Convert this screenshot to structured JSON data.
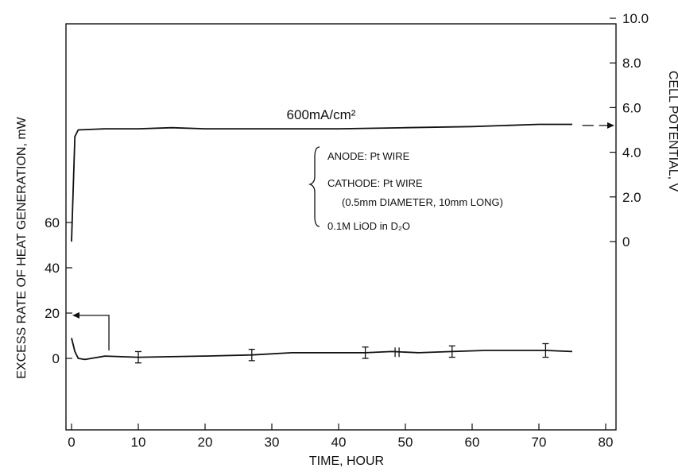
{
  "chart_data": {
    "type": "line",
    "xlabel": "TIME, HOUR",
    "ylabel_left": "EXCESS RATE OF HEAT GENERATION, mW",
    "ylabel_right": "CELL POTENTIAL, V",
    "x_ticks": [
      "0",
      "10",
      "20",
      "30",
      "40",
      "50",
      "60",
      "70",
      "80"
    ],
    "y_left_ticks": [
      "0",
      "20",
      "40",
      "60"
    ],
    "y_right_ticks": [
      "0",
      "2.0",
      "4.0",
      "6.0",
      "8.0",
      "10.0"
    ],
    "xlim": [
      0,
      80
    ],
    "ylim_left": [
      0,
      60
    ],
    "ylim_right": [
      0,
      10
    ],
    "grid": false,
    "series": [
      {
        "axis": "right",
        "x": [
          0,
          0.5,
          1,
          5,
          10,
          15,
          20,
          30,
          40,
          50,
          60,
          70,
          75
        ],
        "values": [
          0,
          4.7,
          5.0,
          5.05,
          5.05,
          5.1,
          5.05,
          5.05,
          5.05,
          5.1,
          5.15,
          5.25,
          5.25
        ]
      },
      {
        "axis": "left",
        "x": [
          0,
          0.5,
          1,
          2,
          5,
          10,
          20,
          27,
          33,
          44,
          48,
          52,
          57,
          62,
          71,
          75
        ],
        "values": [
          9,
          3,
          0,
          -0.5,
          1,
          0.5,
          1,
          1.5,
          2.5,
          2.5,
          3,
          2.5,
          3,
          3.5,
          3.5,
          3
        ],
        "error_bars": [
          {
            "x": 10,
            "value": 0.5,
            "err": 2.5
          },
          {
            "x": 27,
            "value": 1.5,
            "err": 2.5
          },
          {
            "x": 44,
            "value": 2.5,
            "err": 2.5
          },
          {
            "x": 57,
            "value": 3,
            "err": 2.5
          },
          {
            "x": 71,
            "value": 3.5,
            "err": 3
          }
        ]
      }
    ],
    "annotations": {
      "current_density": "600mA/cm²",
      "conditions": [
        "ANODE: Pt WIRE",
        "CATHODE: Pt WIRE",
        "(0.5mm DIAMETER, 10mm LONG)",
        "0.1M LiOD in D₂O"
      ]
    }
  }
}
